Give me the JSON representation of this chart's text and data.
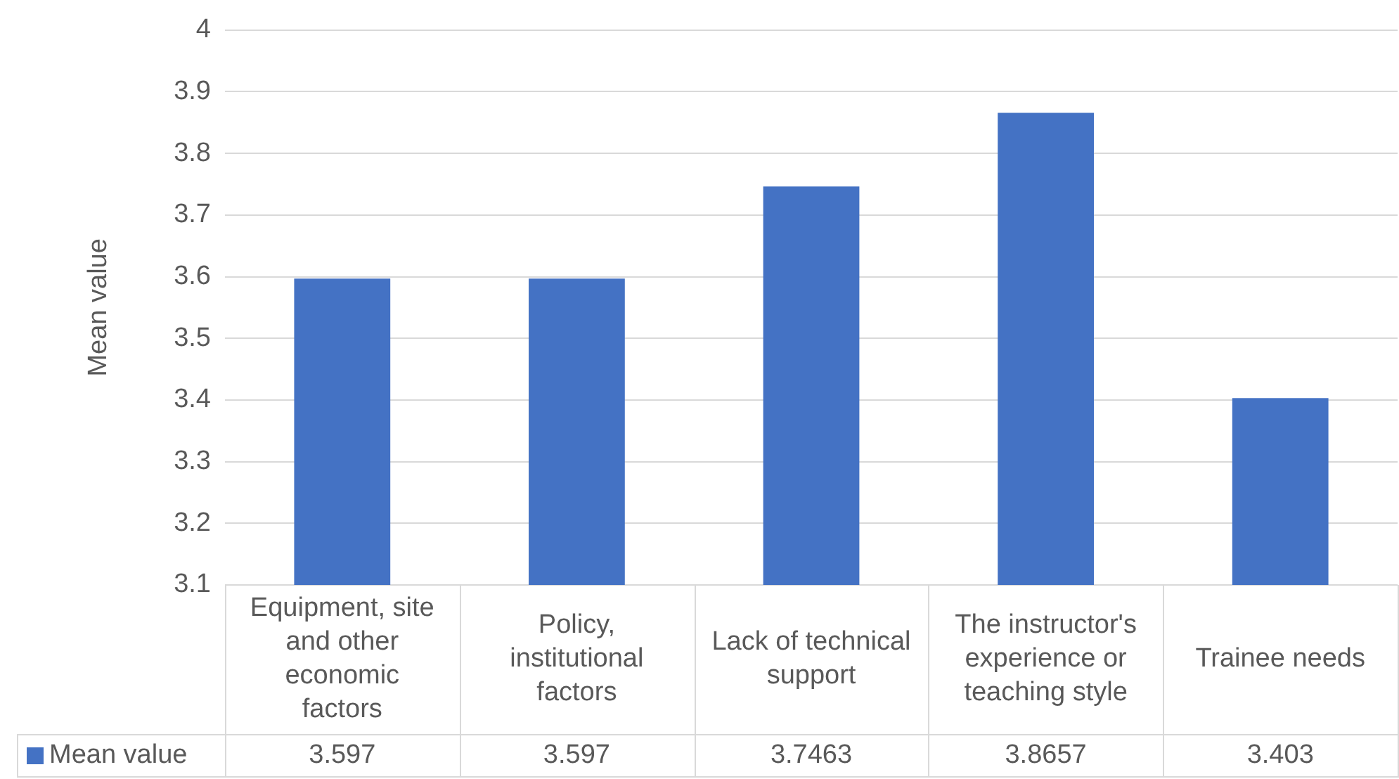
{
  "chart_data": {
    "type": "bar",
    "ylabel": "Mean value",
    "categories": [
      "Equipment, site and other economic factors",
      "Policy, institutional factors",
      "Lack of technical support",
      "The instructor's experience or teaching style",
      "Trainee needs"
    ],
    "series": [
      {
        "name": "Mean value",
        "color": "#4472c4",
        "values": [
          3.597,
          3.597,
          3.7463,
          3.8657,
          3.403
        ]
      }
    ],
    "ylim": [
      3.1,
      4
    ],
    "yticks": [
      3.1,
      3.2,
      3.3,
      3.4,
      3.5,
      3.6,
      3.7,
      3.8,
      3.9,
      4
    ],
    "grid": "y",
    "legend": "bottom",
    "data_labels": true
  }
}
